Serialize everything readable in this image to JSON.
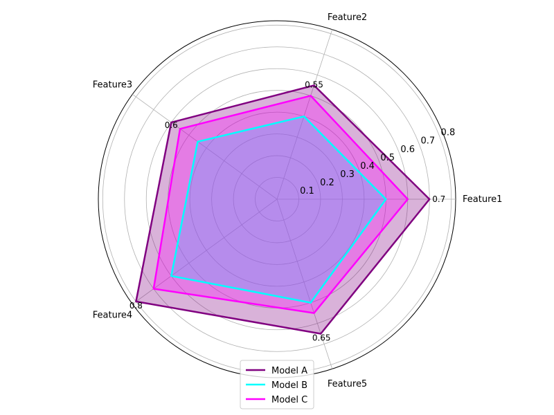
{
  "chart_data": {
    "type": "radar",
    "title": "",
    "categories": [
      "Feature1",
      "Feature2",
      "Feature3",
      "Feature4",
      "Feature5"
    ],
    "radial_ticks": [
      "0.1",
      "0.2",
      "0.3",
      "0.4",
      "0.5",
      "0.6",
      "0.7",
      "0.8"
    ],
    "rmax": 0.82,
    "grid": true,
    "legend_position": "bottom-center",
    "series": [
      {
        "name": "Model A",
        "values": [
          0.7,
          0.55,
          0.6,
          0.8,
          0.65
        ],
        "color": "#800080",
        "fill": "#800080",
        "fill_opacity": 0.3
      },
      {
        "name": "Model B",
        "values": [
          0.5,
          0.4,
          0.45,
          0.6,
          0.5
        ],
        "color": "#00FFFF",
        "fill": "#00FFFF",
        "fill_opacity": 0.3
      },
      {
        "name": "Model C",
        "values": [
          0.6,
          0.5,
          0.55,
          0.7,
          0.55
        ],
        "color": "#FF00FF",
        "fill": "#FF00FF",
        "fill_opacity": 0.3
      }
    ],
    "data_labels": [
      "0.7",
      "0.55",
      "0.6",
      "0.8",
      "0.65"
    ]
  }
}
